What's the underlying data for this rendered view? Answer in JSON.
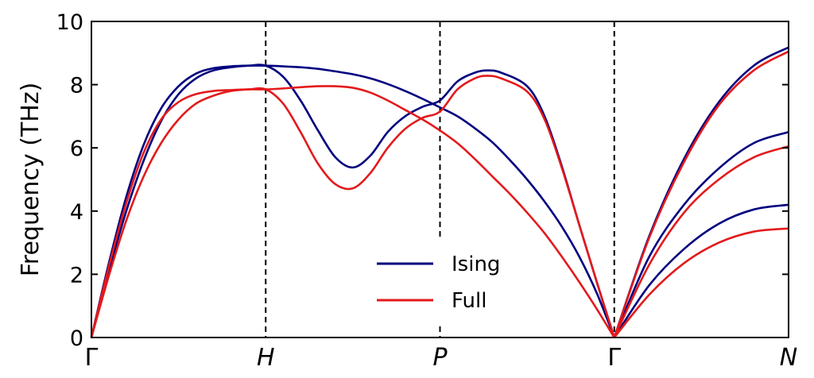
{
  "chart_data": {
    "type": "line",
    "ylabel": "Frequency (THz)",
    "ylim": [
      0,
      10
    ],
    "yticks": [
      0,
      2,
      4,
      6,
      8,
      10
    ],
    "xlim": [
      0,
      4
    ],
    "xticks": [
      {
        "pos": 0,
        "label": "Γ",
        "italic": false
      },
      {
        "pos": 1,
        "label": "H",
        "italic": true
      },
      {
        "pos": 2,
        "label": "P",
        "italic": true
      },
      {
        "pos": 3,
        "label": "Γ",
        "italic": false
      },
      {
        "pos": 4,
        "label": "N",
        "italic": true
      }
    ],
    "vlines": [
      1,
      2,
      3
    ],
    "legend_position": "lower-center",
    "grid": false,
    "series": [
      {
        "name": "Ising",
        "color": "#00007f",
        "branches": [
          [
            [
              0,
              0
            ],
            [
              0.1,
              2.35
            ],
            [
              0.2,
              4.45
            ],
            [
              0.3,
              6.1
            ],
            [
              0.4,
              7.25
            ],
            [
              0.5,
              7.95
            ],
            [
              0.6,
              8.35
            ],
            [
              0.7,
              8.52
            ],
            [
              0.8,
              8.58
            ],
            [
              0.9,
              8.6
            ],
            [
              1.0,
              8.6
            ],
            [
              1.1,
              8.58
            ],
            [
              1.2,
              8.55
            ],
            [
              1.3,
              8.5
            ],
            [
              1.4,
              8.42
            ],
            [
              1.5,
              8.33
            ],
            [
              1.6,
              8.2
            ],
            [
              1.7,
              8.02
            ],
            [
              1.8,
              7.8
            ],
            [
              1.9,
              7.55
            ],
            [
              2.0,
              7.28
            ],
            [
              2.1,
              7.0
            ],
            [
              2.2,
              6.62
            ],
            [
              2.3,
              6.18
            ],
            [
              2.4,
              5.62
            ],
            [
              2.5,
              5.0
            ],
            [
              2.6,
              4.3
            ],
            [
              2.7,
              3.5
            ],
            [
              2.8,
              2.55
            ],
            [
              2.9,
              1.4
            ],
            [
              3.0,
              0
            ]
          ],
          [
            [
              0,
              0
            ],
            [
              0.1,
              2.1
            ],
            [
              0.2,
              4.0
            ],
            [
              0.3,
              5.6
            ],
            [
              0.4,
              6.85
            ],
            [
              0.5,
              7.7
            ],
            [
              0.6,
              8.2
            ],
            [
              0.7,
              8.45
            ],
            [
              0.8,
              8.55
            ],
            [
              0.9,
              8.6
            ],
            [
              1.0,
              8.6
            ],
            [
              1.1,
              8.25
            ],
            [
              1.2,
              7.5
            ],
            [
              1.3,
              6.55
            ],
            [
              1.4,
              5.7
            ],
            [
              1.5,
              5.38
            ],
            [
              1.6,
              5.75
            ],
            [
              1.7,
              6.5
            ],
            [
              1.8,
              7.0
            ],
            [
              1.9,
              7.3
            ],
            [
              2.0,
              7.5
            ],
            [
              2.1,
              8.1
            ],
            [
              2.2,
              8.38
            ],
            [
              2.27,
              8.45
            ],
            [
              2.35,
              8.38
            ],
            [
              2.5,
              7.95
            ],
            [
              2.6,
              7.0
            ],
            [
              2.7,
              5.4
            ],
            [
              2.8,
              3.55
            ],
            [
              2.9,
              1.75
            ],
            [
              3.0,
              0
            ]
          ],
          [
            [
              3.0,
              0
            ],
            [
              3.2,
              1.65
            ],
            [
              3.4,
              2.8
            ],
            [
              3.6,
              3.6
            ],
            [
              3.8,
              4.05
            ],
            [
              4.0,
              4.2
            ]
          ],
          [
            [
              3.0,
              0
            ],
            [
              3.2,
              2.55
            ],
            [
              3.4,
              4.2
            ],
            [
              3.6,
              5.35
            ],
            [
              3.8,
              6.15
            ],
            [
              4.0,
              6.5
            ]
          ],
          [
            [
              3.0,
              0
            ],
            [
              3.2,
              3.2
            ],
            [
              3.4,
              5.65
            ],
            [
              3.6,
              7.45
            ],
            [
              3.8,
              8.6
            ],
            [
              4.0,
              9.18
            ]
          ]
        ]
      },
      {
        "name": "Full",
        "color": "#e31a1c",
        "branches": [
          [
            [
              0,
              0
            ],
            [
              0.1,
              1.95
            ],
            [
              0.2,
              3.7
            ],
            [
              0.3,
              5.1
            ],
            [
              0.4,
              6.15
            ],
            [
              0.5,
              6.9
            ],
            [
              0.6,
              7.4
            ],
            [
              0.7,
              7.65
            ],
            [
              0.8,
              7.8
            ],
            [
              0.9,
              7.85
            ],
            [
              1.0,
              7.85
            ],
            [
              1.1,
              7.88
            ],
            [
              1.2,
              7.92
            ],
            [
              1.3,
              7.95
            ],
            [
              1.4,
              7.95
            ],
            [
              1.5,
              7.9
            ],
            [
              1.6,
              7.75
            ],
            [
              1.7,
              7.5
            ],
            [
              1.8,
              7.2
            ],
            [
              1.9,
              6.9
            ],
            [
              2.0,
              6.55
            ],
            [
              2.1,
              6.15
            ],
            [
              2.2,
              5.65
            ],
            [
              2.3,
              5.1
            ],
            [
              2.4,
              4.55
            ],
            [
              2.5,
              3.95
            ],
            [
              2.6,
              3.3
            ],
            [
              2.7,
              2.55
            ],
            [
              2.8,
              1.75
            ],
            [
              2.9,
              0.9
            ],
            [
              3.0,
              0
            ]
          ],
          [
            [
              0,
              0
            ],
            [
              0.1,
              2.25
            ],
            [
              0.2,
              4.25
            ],
            [
              0.3,
              5.85
            ],
            [
              0.4,
              6.9
            ],
            [
              0.5,
              7.45
            ],
            [
              0.6,
              7.7
            ],
            [
              0.7,
              7.8
            ],
            [
              0.8,
              7.83
            ],
            [
              0.9,
              7.85
            ],
            [
              1.0,
              7.85
            ],
            [
              1.1,
              7.4
            ],
            [
              1.2,
              6.5
            ],
            [
              1.3,
              5.5
            ],
            [
              1.4,
              4.85
            ],
            [
              1.5,
              4.72
            ],
            [
              1.6,
              5.2
            ],
            [
              1.7,
              6.0
            ],
            [
              1.8,
              6.6
            ],
            [
              1.9,
              6.95
            ],
            [
              2.0,
              7.15
            ],
            [
              2.1,
              7.85
            ],
            [
              2.2,
              8.2
            ],
            [
              2.27,
              8.28
            ],
            [
              2.35,
              8.2
            ],
            [
              2.5,
              7.78
            ],
            [
              2.6,
              6.9
            ],
            [
              2.7,
              5.35
            ],
            [
              2.8,
              3.55
            ],
            [
              2.9,
              1.75
            ],
            [
              3.0,
              0
            ]
          ],
          [
            [
              3.0,
              0
            ],
            [
              3.2,
              1.35
            ],
            [
              3.4,
              2.35
            ],
            [
              3.6,
              3.0
            ],
            [
              3.8,
              3.35
            ],
            [
              4.0,
              3.45
            ]
          ],
          [
            [
              3.0,
              0
            ],
            [
              3.2,
              2.3
            ],
            [
              3.4,
              3.95
            ],
            [
              3.6,
              5.0
            ],
            [
              3.8,
              5.7
            ],
            [
              4.0,
              6.05
            ]
          ],
          [
            [
              3.0,
              0
            ],
            [
              3.2,
              3.15
            ],
            [
              3.4,
              5.55
            ],
            [
              3.6,
              7.35
            ],
            [
              3.8,
              8.45
            ],
            [
              4.0,
              9.05
            ]
          ]
        ]
      }
    ]
  }
}
